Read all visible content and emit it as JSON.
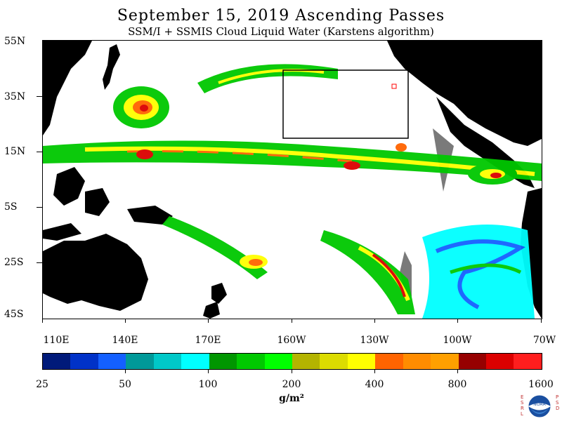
{
  "header": {
    "title": "September 15, 2019  Ascending Passes",
    "subtitle": "SSM/I + SSMIS Cloud Liquid Water (Karstens algorithm)"
  },
  "axes": {
    "y_labels": [
      "55N",
      "35N",
      "15N",
      "5S",
      "25S",
      "45S"
    ],
    "x_labels": [
      "110E",
      "140E",
      "170E",
      "160W",
      "130W",
      "100W",
      "70W"
    ]
  },
  "colorbar": {
    "colors": [
      "#001a7a",
      "#0032c8",
      "#1460ff",
      "#009999",
      "#00c8c8",
      "#00ffff",
      "#009600",
      "#00c800",
      "#00ff00",
      "#b4b400",
      "#dcdc00",
      "#ffff00",
      "#ff6400",
      "#ff8c00",
      "#ffa000",
      "#960000",
      "#dc0000",
      "#ff1e1e"
    ],
    "labels": [
      "25",
      "50",
      "100",
      "200",
      "400",
      "800",
      "1600"
    ],
    "units": "g/m²"
  },
  "logo": {
    "left_text": "ESRL",
    "right_text": "PSD",
    "center_text": "NOAA"
  }
}
